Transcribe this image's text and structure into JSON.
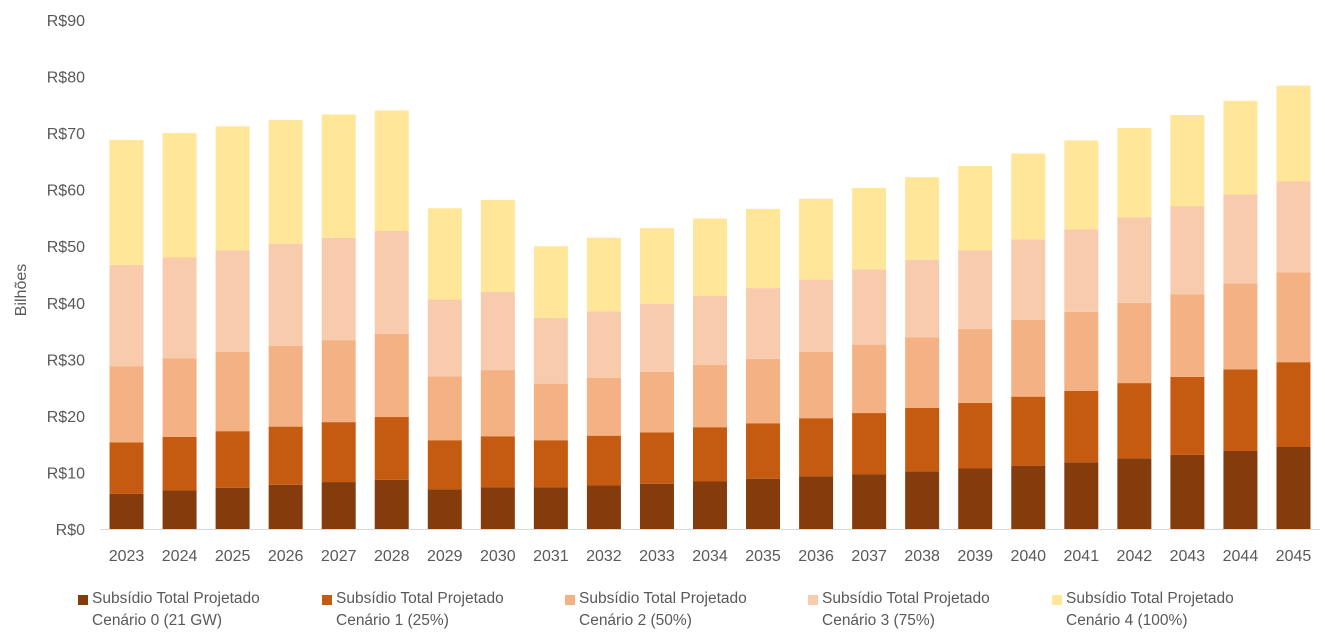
{
  "chart_data": {
    "type": "bar",
    "stacked": true,
    "ylabel": "Bilhões",
    "xlabel": "",
    "ylim": [
      0,
      90
    ],
    "y_ticks": [
      0,
      10,
      20,
      30,
      40,
      50,
      60,
      70,
      80,
      90
    ],
    "y_tick_labels": [
      "R$0",
      "R$10",
      "R$20",
      "R$30",
      "R$40",
      "R$50",
      "R$60",
      "R$70",
      "R$80",
      "R$90"
    ],
    "grid": false,
    "legend_position": "bottom",
    "categories": [
      "2023",
      "2024",
      "2025",
      "2026",
      "2027",
      "2028",
      "2029",
      "2030",
      "2031",
      "2032",
      "2033",
      "2034",
      "2035",
      "2036",
      "2037",
      "2038",
      "2039",
      "2040",
      "2041",
      "2042",
      "2043",
      "2044",
      "2045"
    ],
    "series": [
      {
        "name": "Subsídio Total Projetado Cenário 0 (21 GW)",
        "name_lines": [
          "Subsídio Total Projetado",
          "Cenário 0 (21 GW)"
        ],
        "color": "#843C0C",
        "values": [
          6.2,
          6.8,
          7.3,
          7.8,
          8.3,
          8.7,
          7.0,
          7.4,
          7.4,
          7.7,
          8.0,
          8.4,
          8.9,
          9.3,
          9.7,
          10.2,
          10.7,
          11.2,
          11.8,
          12.5,
          13.1,
          13.8,
          14.5
        ]
      },
      {
        "name": "Subsídio Total Projetado Cenário 1 (25%)",
        "name_lines": [
          "Subsídio Total Projetado",
          "Cenário 1 (25%)"
        ],
        "color": "#C55A11",
        "values": [
          9.1,
          9.5,
          10.0,
          10.3,
          10.6,
          11.1,
          8.7,
          9.0,
          8.3,
          8.8,
          9.1,
          9.6,
          9.8,
          10.3,
          10.8,
          11.2,
          11.6,
          12.2,
          12.6,
          13.3,
          13.8,
          14.4,
          15.0
        ]
      },
      {
        "name": "Subsídio Total Projetado Cenário 2 (50%)",
        "name_lines": [
          "Subsídio Total Projetado",
          "Cenário 2 (50%)"
        ],
        "color": "#F4B183",
        "values": [
          13.5,
          13.9,
          14.0,
          14.3,
          14.5,
          14.7,
          11.3,
          11.7,
          10.0,
          10.2,
          10.7,
          11.0,
          11.4,
          11.7,
          12.1,
          12.5,
          13.1,
          13.6,
          14.0,
          14.2,
          14.6,
          15.2,
          15.9
        ]
      },
      {
        "name": "Subsídio Total Projetado Cenário 3 (75%)",
        "name_lines": [
          "Subsídio Total Projetado",
          "Cenário 3 (75%)"
        ],
        "color": "#F8CBAD",
        "values": [
          17.9,
          17.8,
          18.0,
          18.0,
          18.1,
          18.2,
          13.6,
          13.8,
          11.6,
          11.8,
          12.0,
          12.2,
          12.5,
          12.8,
          13.3,
          13.7,
          13.9,
          14.2,
          14.6,
          15.1,
          15.6,
          15.8,
          16.1
        ]
      },
      {
        "name": "Subsídio Total Projetado Cenário 4 (100%)",
        "name_lines": [
          "Subsídio Total Projetado",
          "Cenário 4 (100%)"
        ],
        "color": "#FFE699",
        "values": [
          22.1,
          22.0,
          21.9,
          21.9,
          21.8,
          21.3,
          16.1,
          16.3,
          12.7,
          13.0,
          13.4,
          13.7,
          14.0,
          14.3,
          14.4,
          14.6,
          14.9,
          15.2,
          15.7,
          15.8,
          16.1,
          16.5,
          16.9
        ]
      }
    ]
  }
}
